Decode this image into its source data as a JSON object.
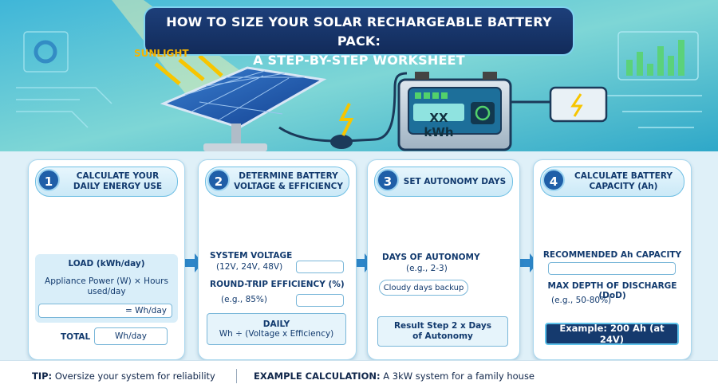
{
  "header": {
    "title_lines": [
      "HOW TO SIZE YOUR SOLAR RECHARGEABLE BATTERY PACK:",
      "A STEP-BY-STEP WORKSHEET"
    ]
  },
  "illustration": {
    "sunlight_label": "SUNLIGHT",
    "battery_display": "XX kWh"
  },
  "steps": [
    {
      "number": 1,
      "title": "CALCULATE YOUR DAILY ENERGY USE",
      "load_label": "LOAD (kWh/day)",
      "formula": "Appliance Power (W) × Hours used/day",
      "result_field": "= Wh/day",
      "total_label": "TOTAL",
      "total_field": "Wh/day"
    },
    {
      "number": 2,
      "title": "DETERMINE BATTERY VOLTAGE & EFFICIENCY",
      "voltage_label": "SYSTEM VOLTAGE",
      "voltage_hint": "(12V, 24V, 48V)",
      "efficiency_label": "ROUND-TRIP EFFICIENCY (%)",
      "efficiency_hint": "(e.g., 85%)",
      "daily_label": "DAILY",
      "daily_formula": "Wh ÷ (Voltage x Efficiency)"
    },
    {
      "number": 3,
      "title": "SET AUTONOMY DAYS",
      "days_label": "DAYS OF AUTONOMY",
      "days_hint": "(e.g., 2-3)",
      "backup_note": "Cloudy days backup",
      "result_formula": "Result Step 2 x Days of Autonomy"
    },
    {
      "number": 4,
      "title": "CALCULATE BATTERY CAPACITY (Ah)",
      "capacity_label": "RECOMMENDED Ah CAPACITY",
      "dod_label": "MAX DEPTH OF DISCHARGE (DoD)",
      "dod_hint": "(e.g., 50-80%)",
      "example": "Example: 200 Ah (at 24V)"
    }
  ],
  "footer": {
    "tip_label": "TIP:",
    "tip_text": "Oversize your system for reliability",
    "example_label": "EXAMPLE CALCULATION:",
    "example_text": "A 3kW system for a family house"
  }
}
